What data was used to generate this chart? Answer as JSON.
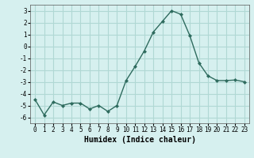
{
  "x": [
    0,
    1,
    2,
    3,
    4,
    5,
    6,
    7,
    8,
    9,
    10,
    11,
    12,
    13,
    14,
    15,
    16,
    17,
    18,
    19,
    20,
    21,
    22,
    23
  ],
  "y": [
    -4.5,
    -5.8,
    -4.7,
    -5.0,
    -4.8,
    -4.8,
    -5.3,
    -5.0,
    -5.5,
    -5.0,
    -2.9,
    -1.7,
    -0.4,
    1.2,
    2.1,
    3.0,
    2.7,
    0.9,
    -1.4,
    -2.5,
    -2.9,
    -2.9,
    -2.85,
    -3.0
  ],
  "line_color": "#2e6b5e",
  "marker": "D",
  "marker_size": 2.0,
  "line_width": 1.0,
  "xlabel": "Humidex (Indice chaleur)",
  "xlim": [
    -0.5,
    23.5
  ],
  "ylim": [
    -6.5,
    3.5
  ],
  "yticks": [
    -6,
    -5,
    -4,
    -3,
    -2,
    -1,
    0,
    1,
    2,
    3
  ],
  "xticks": [
    0,
    1,
    2,
    3,
    4,
    5,
    6,
    7,
    8,
    9,
    10,
    11,
    12,
    13,
    14,
    15,
    16,
    17,
    18,
    19,
    20,
    21,
    22,
    23
  ],
  "background_color": "#d6f0ef",
  "grid_color": "#b0d8d4",
  "tick_fontsize": 5.5,
  "xlabel_fontsize": 7.0
}
